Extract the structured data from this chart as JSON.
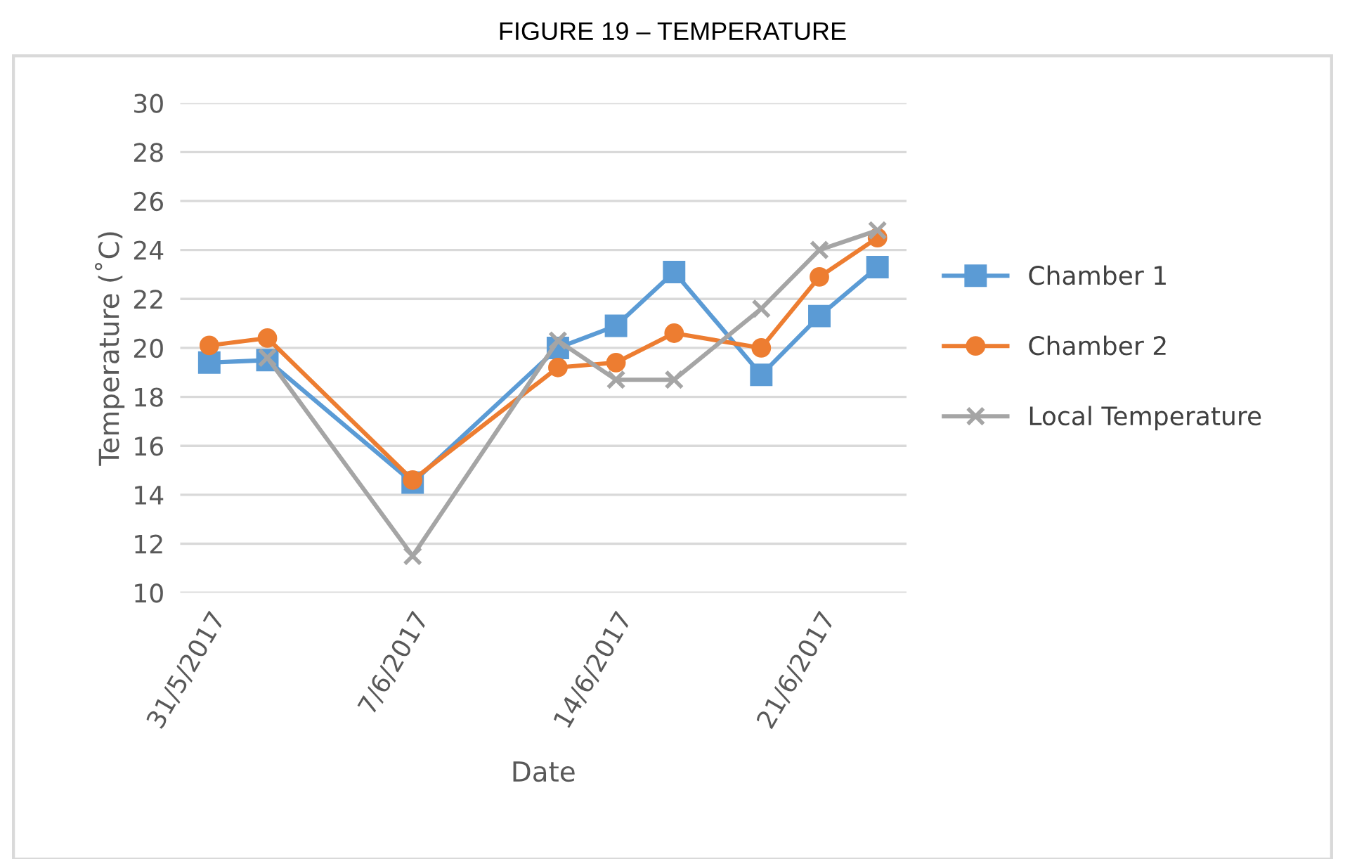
{
  "chart_data": {
    "type": "line",
    "title": "FIGURE 19 – TEMPERATURE",
    "xlabel": "Date",
    "ylabel": "Temperature (˚C)",
    "x": [
      "2017-05-31",
      "2017-06-02",
      "2017-06-07",
      "2017-06-12",
      "2017-06-14",
      "2017-06-16",
      "2017-06-19",
      "2017-06-21",
      "2017-06-23"
    ],
    "series": [
      {
        "name": "Chamber 1",
        "color": "#5b9bd5",
        "marker": "square",
        "values": [
          19.4,
          19.5,
          14.5,
          20.0,
          20.9,
          23.1,
          18.9,
          21.3,
          23.3
        ]
      },
      {
        "name": "Chamber 2",
        "color": "#ed7d31",
        "marker": "circle",
        "values": [
          20.1,
          20.4,
          14.6,
          19.2,
          19.4,
          20.6,
          20.0,
          22.9,
          24.5
        ]
      },
      {
        "name": "Local Temperature",
        "color": "#a5a5a5",
        "marker": "cross",
        "values": [
          null,
          19.6,
          11.5,
          20.3,
          18.7,
          18.7,
          21.6,
          24.0,
          24.8
        ]
      }
    ],
    "xlim": [
      "2017-05-30",
      "2017-06-24"
    ],
    "xticks": [
      {
        "value": "2017-05-31",
        "label": "31/5/2017"
      },
      {
        "value": "2017-06-07",
        "label": "7/6/2017"
      },
      {
        "value": "2017-06-14",
        "label": "14/6/2017"
      },
      {
        "value": "2017-06-21",
        "label": "21/6/2017"
      }
    ],
    "ylim": [
      10,
      30
    ],
    "yticks": [
      10,
      12,
      14,
      16,
      18,
      20,
      22,
      24,
      26,
      28,
      30
    ],
    "grid": "y",
    "legend": "right",
    "line_style": "solid"
  }
}
